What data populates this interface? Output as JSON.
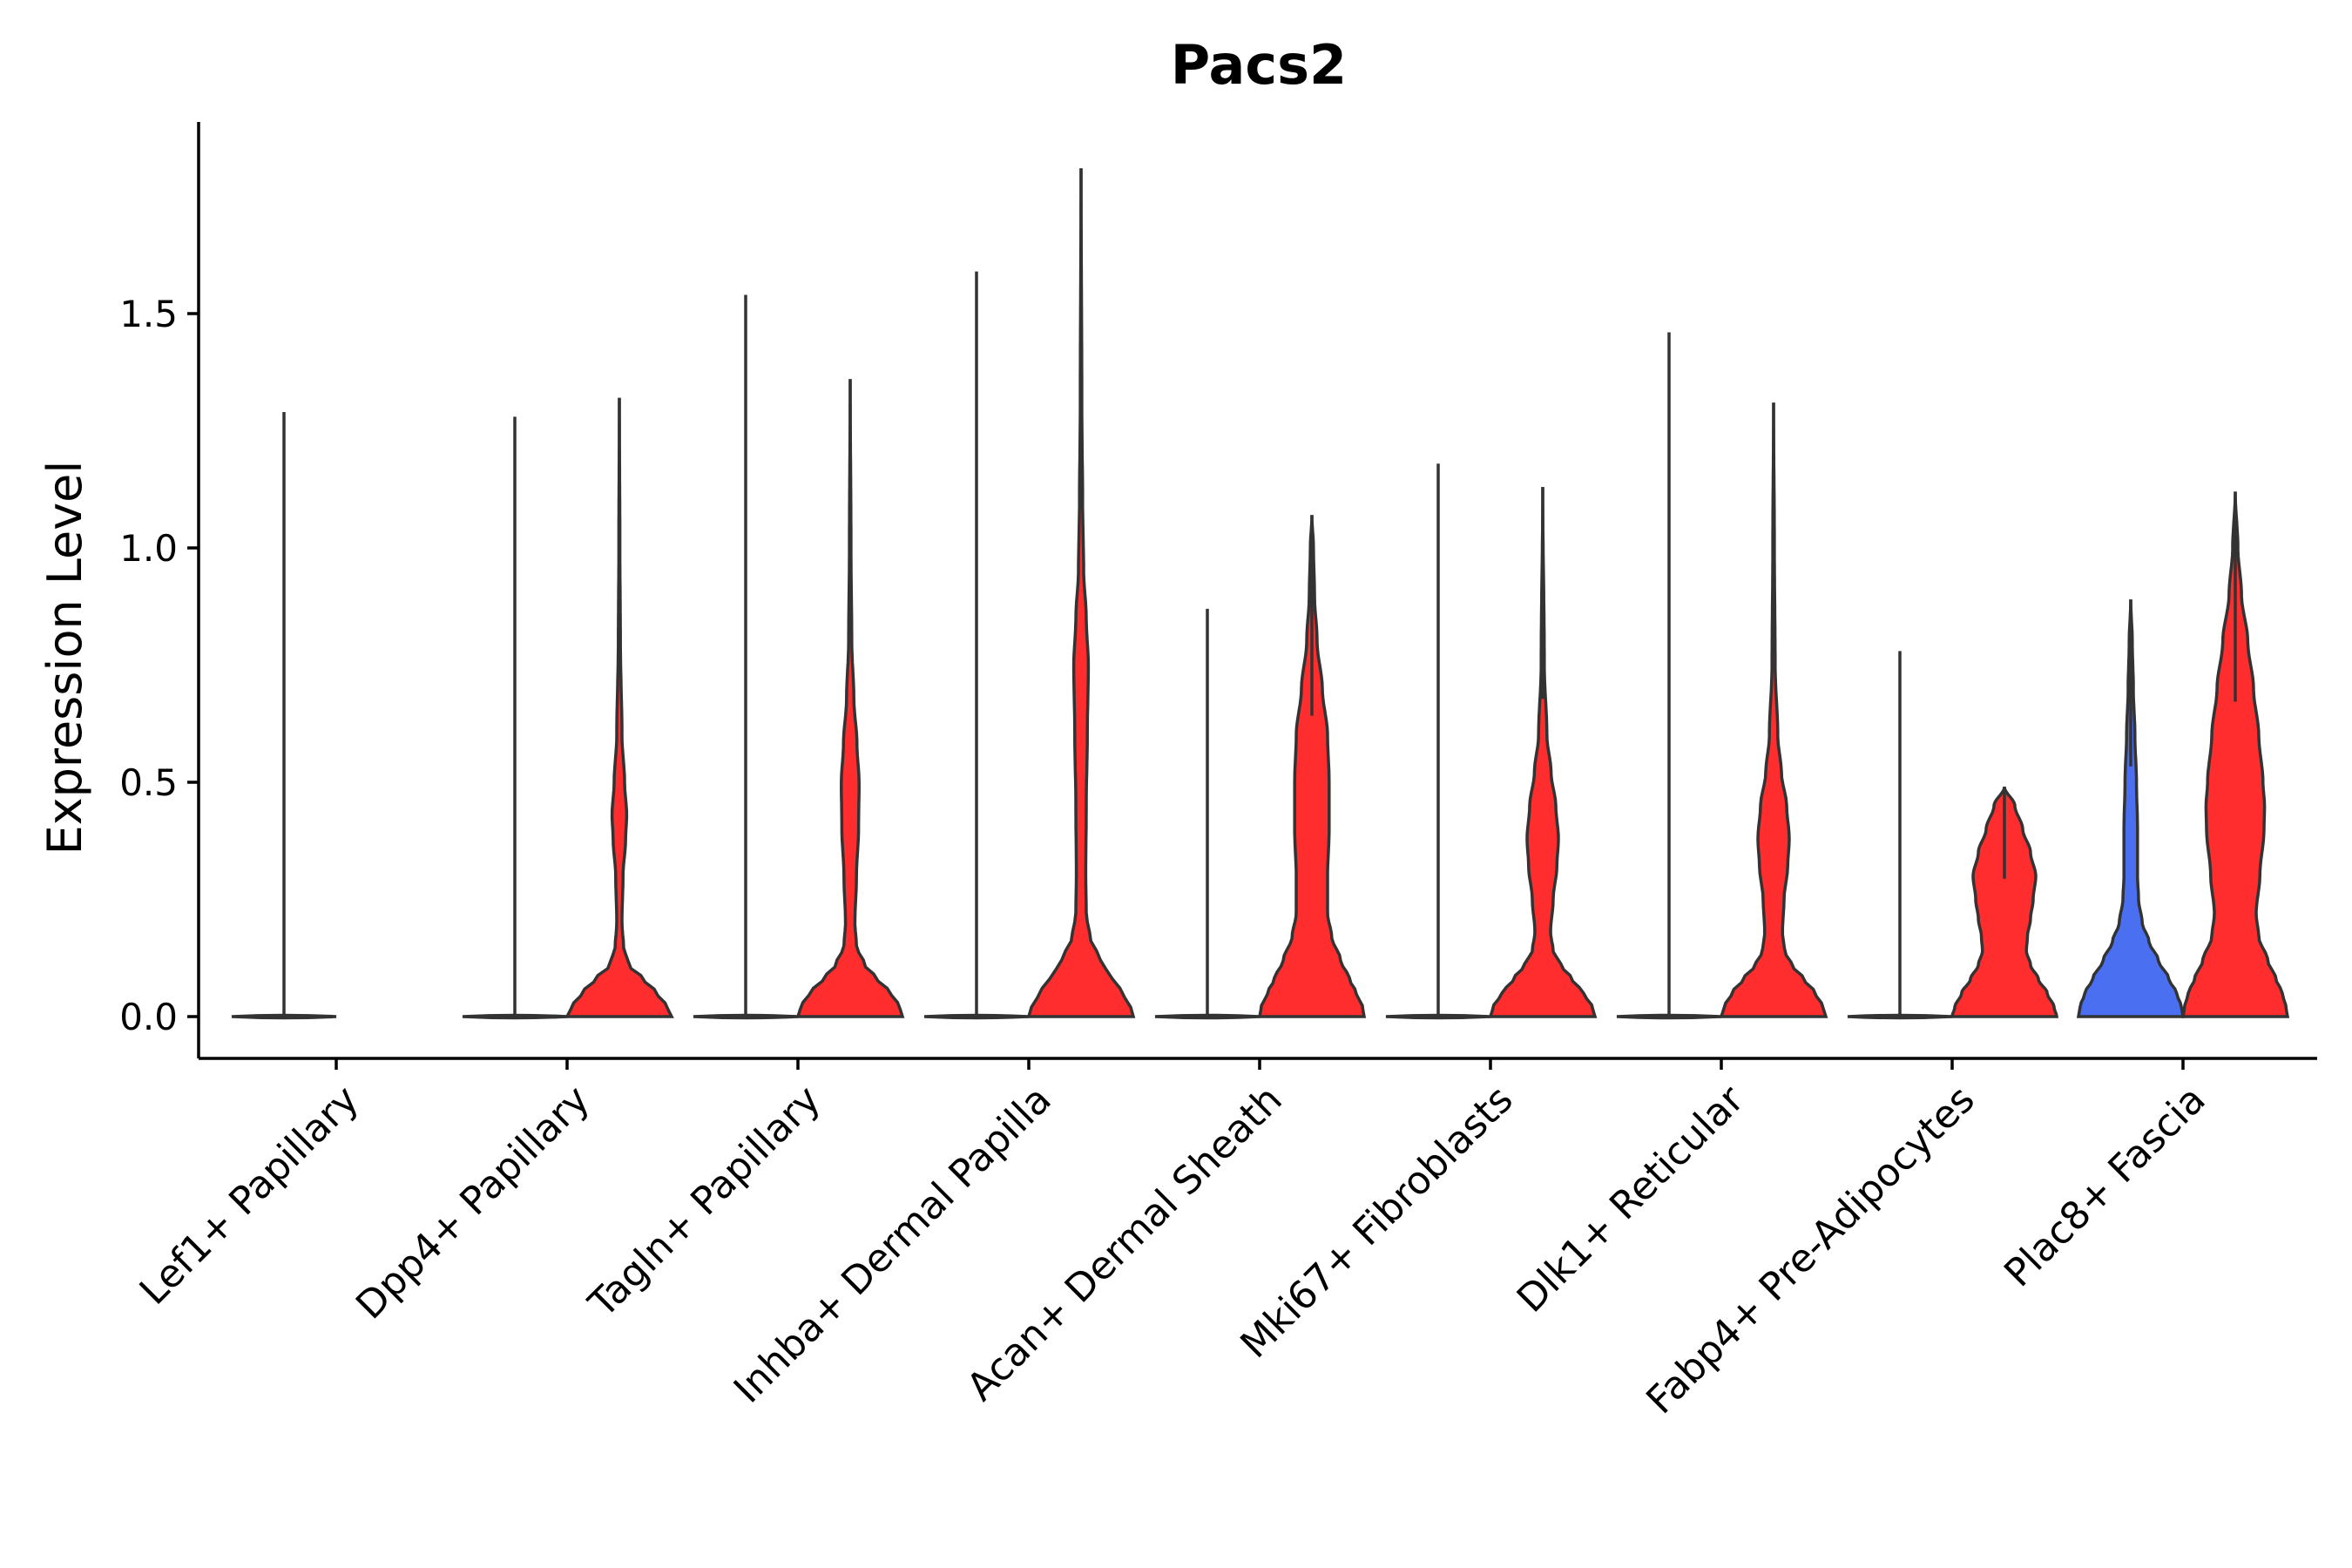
{
  "chart_data": {
    "type": "violin",
    "title": "Pacs2",
    "xlabel": "",
    "ylabel": "Expression Level",
    "ylim": [
      -0.09,
      1.9
    ],
    "yticks": [
      0.0,
      0.5,
      1.0,
      1.5
    ],
    "ytick_labels": [
      "0.0",
      "0.5",
      "1.0",
      "1.5"
    ],
    "grid": false,
    "legend": "none",
    "colors": {
      "low": "#4a6ff0",
      "high": "#ff2d2d",
      "outline": "#333333"
    },
    "categories": [
      "Lef1+ Papillary",
      "Dpp4+ Papillary",
      "Tagln+ Papillary",
      "Inhba+ Dermal Papilla",
      "Acan+ Dermal Sheath",
      "Mki67+ Fibroblasts",
      "Dlk1+ Reticular",
      "Fabp4+ Pre-Adipocytes",
      "Plac8+ Fascia"
    ],
    "groups": [
      {
        "category": "Lef1+ Papillary",
        "violins": [
          {
            "side": "left",
            "color": "none",
            "max": 1.29,
            "profile": [
              [
                0,
                1
              ]
            ]
          }
        ]
      },
      {
        "category": "Dpp4+ Papillary",
        "violins": [
          {
            "side": "left",
            "color": "none",
            "max": 1.28,
            "profile": [
              [
                0,
                1
              ]
            ]
          },
          {
            "side": "right",
            "color": "#ff2d2d",
            "max": 1.32,
            "profile": [
              [
                0,
                1.0
              ],
              [
                0.02,
                0.92
              ],
              [
                0.05,
                0.72
              ],
              [
                0.08,
                0.46
              ],
              [
                0.11,
                0.18
              ],
              [
                0.15,
                0.08
              ],
              [
                0.2,
                0.05
              ],
              [
                0.3,
                0.07
              ],
              [
                0.38,
                0.12
              ],
              [
                0.43,
                0.14
              ],
              [
                0.5,
                0.1
              ],
              [
                0.6,
                0.05
              ],
              [
                0.8,
                0.02
              ],
              [
                1.0,
                0.01
              ],
              [
                1.32,
                0.0
              ]
            ]
          }
        ]
      },
      {
        "category": "Tagln+ Papillary",
        "violins": [
          {
            "side": "left",
            "color": "none",
            "max": 1.54,
            "profile": [
              [
                0,
                1
              ]
            ]
          },
          {
            "side": "right",
            "color": "#ff2d2d",
            "max": 1.36,
            "profile": [
              [
                0,
                1.0
              ],
              [
                0.02,
                0.95
              ],
              [
                0.05,
                0.78
              ],
              [
                0.08,
                0.52
              ],
              [
                0.11,
                0.28
              ],
              [
                0.15,
                0.12
              ],
              [
                0.2,
                0.09
              ],
              [
                0.3,
                0.12
              ],
              [
                0.4,
                0.16
              ],
              [
                0.5,
                0.17
              ],
              [
                0.58,
                0.13
              ],
              [
                0.68,
                0.07
              ],
              [
                0.8,
                0.03
              ],
              [
                1.0,
                0.015
              ],
              [
                1.36,
                0.0
              ]
            ]
          }
        ]
      },
      {
        "category": "Inhba+ Dermal Papilla",
        "violins": [
          {
            "side": "left",
            "color": "none",
            "max": 1.59,
            "profile": [
              [
                0,
                1
              ]
            ]
          },
          {
            "side": "right",
            "color": "#ff2d2d",
            "max": 1.81,
            "profile": [
              [
                0,
                1.0
              ],
              [
                0.02,
                0.95
              ],
              [
                0.05,
                0.8
              ],
              [
                0.08,
                0.6
              ],
              [
                0.12,
                0.37
              ],
              [
                0.17,
                0.17
              ],
              [
                0.22,
                0.1
              ],
              [
                0.3,
                0.09
              ],
              [
                0.45,
                0.1
              ],
              [
                0.6,
                0.12
              ],
              [
                0.75,
                0.14
              ],
              [
                0.85,
                0.1
              ],
              [
                0.95,
                0.05
              ],
              [
                1.1,
                0.03
              ],
              [
                1.3,
                0.015
              ],
              [
                1.81,
                0.0
              ]
            ]
          }
        ]
      },
      {
        "category": "Acan+ Dermal Sheath",
        "violins": [
          {
            "side": "left",
            "color": "none",
            "max": 0.87,
            "profile": [
              [
                0,
                1
              ]
            ]
          },
          {
            "side": "right",
            "color": "#ff2d2d",
            "max": 1.07,
            "profile": [
              [
                0,
                1.0
              ],
              [
                0.02,
                0.97
              ],
              [
                0.05,
                0.85
              ],
              [
                0.08,
                0.72
              ],
              [
                0.12,
                0.55
              ],
              [
                0.17,
                0.38
              ],
              [
                0.22,
                0.3
              ],
              [
                0.3,
                0.3
              ],
              [
                0.4,
                0.33
              ],
              [
                0.5,
                0.33
              ],
              [
                0.6,
                0.3
              ],
              [
                0.7,
                0.2
              ],
              [
                0.8,
                0.1
              ],
              [
                0.9,
                0.05
              ],
              [
                1.0,
                0.03
              ],
              [
                1.07,
                0.0
              ]
            ]
          }
        ]
      },
      {
        "category": "Mki67+ Fibroblasts",
        "violins": [
          {
            "side": "left",
            "color": "none",
            "max": 1.18,
            "profile": [
              [
                0,
                1
              ]
            ]
          },
          {
            "side": "right",
            "color": "#ff2d2d",
            "max": 1.13,
            "profile": [
              [
                0,
                1.0
              ],
              [
                0.02,
                0.95
              ],
              [
                0.05,
                0.78
              ],
              [
                0.08,
                0.56
              ],
              [
                0.11,
                0.35
              ],
              [
                0.14,
                0.2
              ],
              [
                0.18,
                0.15
              ],
              [
                0.25,
                0.2
              ],
              [
                0.32,
                0.27
              ],
              [
                0.38,
                0.3
              ],
              [
                0.45,
                0.25
              ],
              [
                0.52,
                0.16
              ],
              [
                0.6,
                0.08
              ],
              [
                0.75,
                0.03
              ],
              [
                1.13,
                0.0
              ]
            ]
          }
        ]
      },
      {
        "category": "Dlk1+ Reticular",
        "violins": [
          {
            "side": "left",
            "color": "none",
            "max": 1.46,
            "profile": [
              [
                0,
                1
              ]
            ]
          },
          {
            "side": "right",
            "color": "#ff2d2d",
            "max": 1.31,
            "profile": [
              [
                0,
                1.0
              ],
              [
                0.02,
                0.95
              ],
              [
                0.05,
                0.8
              ],
              [
                0.08,
                0.58
              ],
              [
                0.11,
                0.35
              ],
              [
                0.14,
                0.21
              ],
              [
                0.18,
                0.17
              ],
              [
                0.25,
                0.2
              ],
              [
                0.32,
                0.27
              ],
              [
                0.38,
                0.3
              ],
              [
                0.45,
                0.25
              ],
              [
                0.52,
                0.15
              ],
              [
                0.6,
                0.08
              ],
              [
                0.75,
                0.03
              ],
              [
                1.0,
                0.015
              ],
              [
                1.31,
                0.0
              ]
            ]
          }
        ]
      },
      {
        "category": "Fabp4+ Pre-Adipocytes",
        "violins": [
          {
            "side": "left",
            "color": "none",
            "max": 0.78,
            "profile": [
              [
                0,
                1
              ]
            ]
          },
          {
            "side": "right",
            "color": "#ff2d2d",
            "max": 0.49,
            "profile": [
              [
                0,
                1.0
              ],
              [
                0.02,
                0.95
              ],
              [
                0.05,
                0.82
              ],
              [
                0.08,
                0.65
              ],
              [
                0.11,
                0.5
              ],
              [
                0.14,
                0.42
              ],
              [
                0.17,
                0.44
              ],
              [
                0.21,
                0.5
              ],
              [
                0.25,
                0.55
              ],
              [
                0.3,
                0.6
              ],
              [
                0.35,
                0.5
              ],
              [
                0.4,
                0.35
              ],
              [
                0.45,
                0.2
              ],
              [
                0.49,
                0.0
              ]
            ]
          }
        ]
      },
      {
        "category": "Plac8+ Fascia",
        "violins": [
          {
            "side": "left",
            "color": "#4a6ff0",
            "max": 0.89,
            "profile": [
              [
                0,
                1.0
              ],
              [
                0.02,
                0.97
              ],
              [
                0.05,
                0.88
              ],
              [
                0.08,
                0.73
              ],
              [
                0.12,
                0.53
              ],
              [
                0.16,
                0.35
              ],
              [
                0.2,
                0.22
              ],
              [
                0.25,
                0.15
              ],
              [
                0.3,
                0.13
              ],
              [
                0.4,
                0.13
              ],
              [
                0.5,
                0.11
              ],
              [
                0.6,
                0.08
              ],
              [
                0.7,
                0.05
              ],
              [
                0.8,
                0.03
              ],
              [
                0.89,
                0.0
              ]
            ]
          },
          {
            "side": "right",
            "color": "#ff2d2d",
            "max": 1.12,
            "profile": [
              [
                0,
                1.0
              ],
              [
                0.02,
                0.97
              ],
              [
                0.05,
                0.9
              ],
              [
                0.08,
                0.78
              ],
              [
                0.12,
                0.62
              ],
              [
                0.17,
                0.45
              ],
              [
                0.22,
                0.4
              ],
              [
                0.3,
                0.47
              ],
              [
                0.4,
                0.55
              ],
              [
                0.45,
                0.56
              ],
              [
                0.5,
                0.53
              ],
              [
                0.6,
                0.45
              ],
              [
                0.7,
                0.35
              ],
              [
                0.8,
                0.24
              ],
              [
                0.9,
                0.12
              ],
              [
                1.0,
                0.05
              ],
              [
                1.12,
                0.0
              ]
            ]
          }
        ]
      }
    ]
  }
}
